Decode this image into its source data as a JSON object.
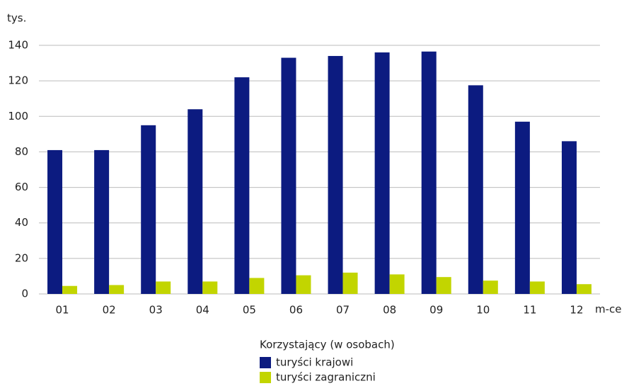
{
  "chart_data": {
    "type": "bar",
    "y_label": "tys.",
    "x_label": "m-ce",
    "legend_title": "Korzystający (w osobach)",
    "categories": [
      "01",
      "02",
      "03",
      "04",
      "05",
      "06",
      "07",
      "08",
      "09",
      "10",
      "11",
      "12"
    ],
    "series": [
      {
        "name": "turyści krajowi",
        "color": "#0c1b80",
        "values": [
          81,
          81,
          95,
          104,
          122,
          133,
          134,
          136,
          136.5,
          117.5,
          97,
          86
        ]
      },
      {
        "name": "turyści zagraniczni",
        "color": "#c2d500",
        "values": [
          4.5,
          5,
          7,
          7,
          9,
          10.5,
          12,
          11,
          9.5,
          7.5,
          7,
          5.5
        ]
      }
    ],
    "ylim": [
      0,
      140
    ],
    "yticks": [
      0,
      20,
      40,
      60,
      80,
      100,
      120,
      140
    ],
    "grid": true
  }
}
